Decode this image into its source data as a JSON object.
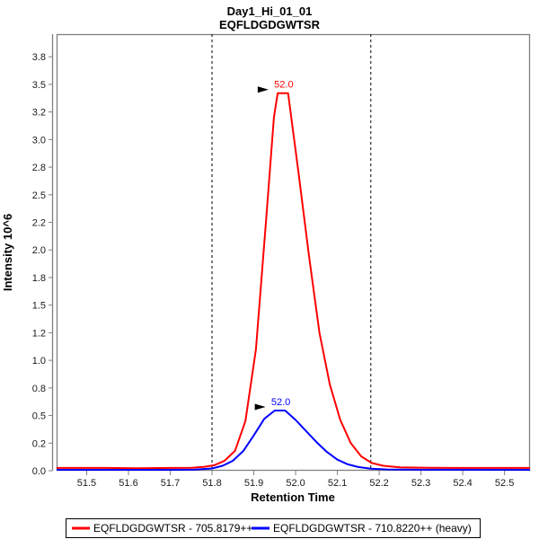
{
  "title": {
    "line1": "Day1_Hi_01_01",
    "line2": "EQFLDGDGWTSR"
  },
  "axes": {
    "x": {
      "label": "Retention Time"
    },
    "y": {
      "label": "Intensity 10^6"
    }
  },
  "legend": [
    {
      "label": "EQFLDGDGWTSR - 705.8179++",
      "color": "#ff0000"
    },
    {
      "label": "EQFLDGDGWTSR - 710.8220++ (heavy)",
      "color": "#0000ff"
    }
  ],
  "colors": {
    "frame": "#808080",
    "boundary": "#000000",
    "arrow": "#000000",
    "light": "#ff0000",
    "heavy": "#0000ff"
  },
  "chart_data": {
    "type": "line",
    "title": "Day1_Hi_01_01",
    "subtitle": "EQFLDGDGWTSR",
    "xlabel": "Retention Time",
    "ylabel": "Intensity 10^6",
    "xlim": [
      51.428,
      52.561
    ],
    "ylim": [
      0,
      3.955
    ],
    "grid": false,
    "legend_position": "bottom",
    "x_ticks": [
      {
        "v": 51.5,
        "label": "51.5"
      },
      {
        "v": 51.6,
        "label": "51.6"
      },
      {
        "v": 51.7,
        "label": "51.7"
      },
      {
        "v": 51.8,
        "label": "51.8"
      },
      {
        "v": 51.9,
        "label": "51.9"
      },
      {
        "v": 52.0,
        "label": "52.0"
      },
      {
        "v": 52.1,
        "label": "52.1"
      },
      {
        "v": 52.2,
        "label": "52.2"
      },
      {
        "v": 52.3,
        "label": "52.3"
      },
      {
        "v": 52.4,
        "label": "52.4"
      },
      {
        "v": 52.5,
        "label": "52.5"
      }
    ],
    "y_ticks": [
      {
        "v": 0.0,
        "label": "0.0"
      },
      {
        "v": 0.25,
        "label": "0.2"
      },
      {
        "v": 0.5,
        "label": "0.5"
      },
      {
        "v": 0.75,
        "label": "0.8"
      },
      {
        "v": 1.0,
        "label": "1.0"
      },
      {
        "v": 1.25,
        "label": "1.2"
      },
      {
        "v": 1.5,
        "label": "1.5"
      },
      {
        "v": 1.75,
        "label": "1.8"
      },
      {
        "v": 2.0,
        "label": "2.0"
      },
      {
        "v": 2.25,
        "label": "2.2"
      },
      {
        "v": 2.5,
        "label": "2.5"
      },
      {
        "v": 2.75,
        "label": "2.8"
      },
      {
        "v": 3.0,
        "label": "3.0"
      },
      {
        "v": 3.25,
        "label": "3.2"
      },
      {
        "v": 3.5,
        "label": "3.5"
      },
      {
        "v": 3.75,
        "label": "3.8"
      }
    ],
    "integration_boundaries": [
      51.8,
      52.18
    ],
    "series": [
      {
        "name": "EQFLDGDGWTSR - 705.8179++",
        "color": "#ff0000",
        "peak_annotation": {
          "label": "52.0",
          "apex_rt": 51.9695,
          "apex_value": 3.42
        },
        "points": [
          [
            51.428,
            0.025
          ],
          [
            51.55,
            0.025
          ],
          [
            51.62,
            0.022
          ],
          [
            51.7,
            0.025
          ],
          [
            51.75,
            0.027
          ],
          [
            51.78,
            0.035
          ],
          [
            51.805,
            0.05
          ],
          [
            51.83,
            0.09
          ],
          [
            51.855,
            0.18
          ],
          [
            51.88,
            0.45
          ],
          [
            51.905,
            1.1
          ],
          [
            51.93,
            2.3
          ],
          [
            51.948,
            3.2
          ],
          [
            51.957,
            3.42
          ],
          [
            51.982,
            3.42
          ],
          [
            52.007,
            2.7
          ],
          [
            52.032,
            1.95
          ],
          [
            52.057,
            1.25
          ],
          [
            52.082,
            0.78
          ],
          [
            52.107,
            0.46
          ],
          [
            52.132,
            0.25
          ],
          [
            52.157,
            0.13
          ],
          [
            52.182,
            0.07
          ],
          [
            52.21,
            0.045
          ],
          [
            52.25,
            0.03
          ],
          [
            52.32,
            0.026
          ],
          [
            52.45,
            0.025
          ],
          [
            52.561,
            0.025
          ]
        ]
      },
      {
        "name": "EQFLDGDGWTSR - 710.8220++ (heavy)",
        "color": "#0000ff",
        "peak_annotation": {
          "label": "52.0",
          "apex_rt": 51.9625,
          "apex_value": 0.545
        },
        "points": [
          [
            51.428,
            0.008
          ],
          [
            51.7,
            0.008
          ],
          [
            51.76,
            0.01
          ],
          [
            51.8,
            0.02
          ],
          [
            51.825,
            0.045
          ],
          [
            51.85,
            0.09
          ],
          [
            51.875,
            0.18
          ],
          [
            51.9,
            0.32
          ],
          [
            51.925,
            0.47
          ],
          [
            51.95,
            0.545
          ],
          [
            51.975,
            0.545
          ],
          [
            52.0,
            0.46
          ],
          [
            52.025,
            0.36
          ],
          [
            52.05,
            0.26
          ],
          [
            52.075,
            0.17
          ],
          [
            52.1,
            0.1
          ],
          [
            52.125,
            0.058
          ],
          [
            52.15,
            0.033
          ],
          [
            52.18,
            0.018
          ],
          [
            52.22,
            0.011
          ],
          [
            52.3,
            0.009
          ],
          [
            52.561,
            0.008
          ]
        ]
      }
    ]
  }
}
